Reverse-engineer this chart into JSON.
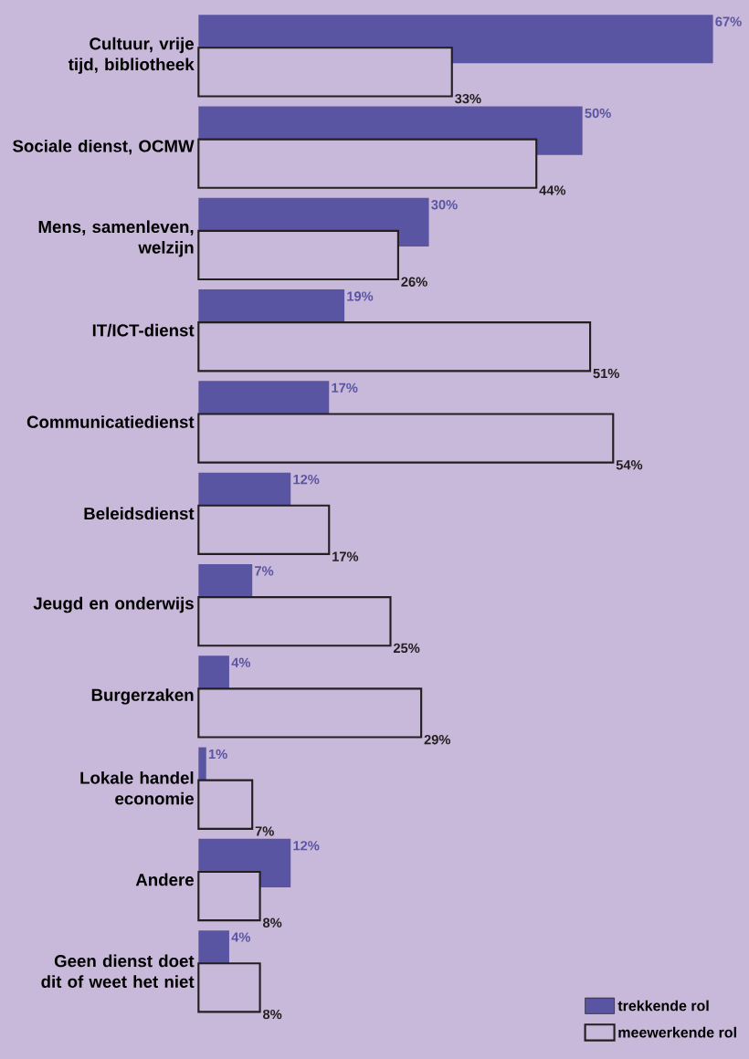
{
  "chart_data": {
    "type": "bar",
    "orientation": "horizontal",
    "legend": "bottom right",
    "categories": [
      "Cultuur, vrije tijd, bibliotheek",
      "Sociale dienst, OCMW",
      "Mens, samenleven, welzijn",
      "IT/ICT-dienst",
      "Communicatiedienst",
      "Beleidsdienst",
      "Jeugd en onderwijs",
      "Burgerzaken",
      "Lokale handel economie",
      "Andere",
      "Geen dienst doet dit of weet het niet"
    ],
    "series": [
      {
        "name": "trekkende rol",
        "color": "#5a55a3",
        "values": [
          67,
          50,
          30,
          19,
          17,
          12,
          7,
          4,
          1,
          12,
          4
        ],
        "value_labels": [
          "67%",
          "50%",
          "30%",
          "19%",
          "17%",
          "12%",
          "7%",
          "4%",
          "1%",
          "12%",
          "4%"
        ]
      },
      {
        "name": "meewerkende rol",
        "color": "#231f20",
        "values": [
          33,
          44,
          26,
          51,
          54,
          17,
          25,
          29,
          7,
          8,
          8
        ],
        "value_labels": [
          "33%",
          "44%",
          "26%",
          "51%",
          "54%",
          "17%",
          "25%",
          "29%",
          "7%",
          "8%",
          "8%"
        ]
      }
    ]
  }
}
